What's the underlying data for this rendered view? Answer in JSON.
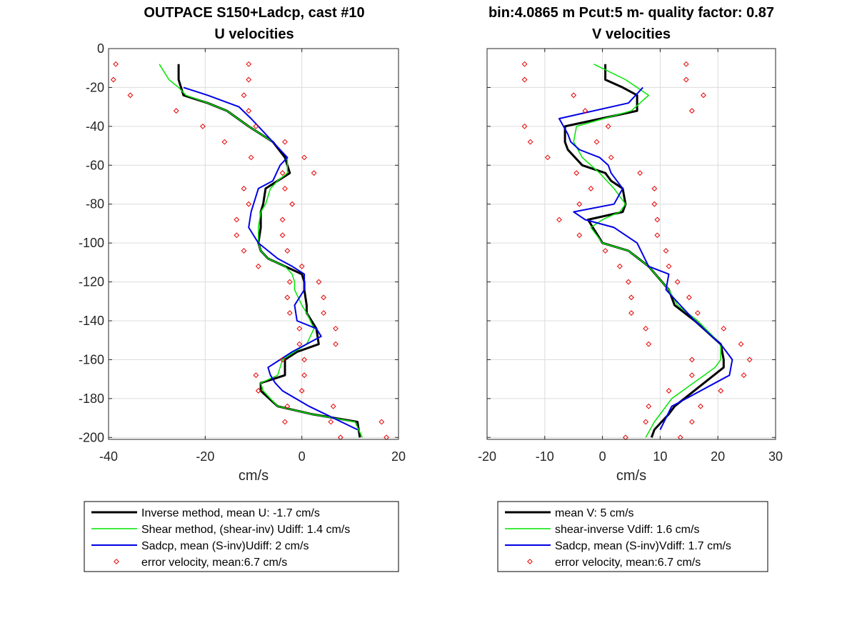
{
  "figure": {
    "left_title_line1": "OUTPACE S150+Ladcp, cast #10",
    "left_title_line2": "U velocities",
    "right_title_line1": "bin:4.0865 m  Pcut:5 m- quality factor:  0.87",
    "right_title_line2": "V velocities",
    "left_xlabel": "cm/s",
    "right_xlabel": "cm/s"
  },
  "colors": {
    "inverse": "#000000",
    "shear": "#00e600",
    "sadcp": "#0000e6",
    "error": "#e60000",
    "grid": "#dcdcdc",
    "axis": "#262626"
  },
  "legends": {
    "left": [
      {
        "label": "Inverse method, mean U:  -1.7 cm/s",
        "style": "inverse"
      },
      {
        "label": "Shear method, (shear-inv)  Udiff:  1.4 cm/s",
        "style": "shear"
      },
      {
        "label": "Sadcp, mean (S-inv)Udiff: 2 cm/s",
        "style": "sadcp"
      },
      {
        "label": "error velocity, mean:6.7 cm/s",
        "style": "error"
      }
    ],
    "right": [
      {
        "label": "mean V:  5 cm/s",
        "style": "inverse"
      },
      {
        "label": "shear-inverse Vdiff:  1.6 cm/s",
        "style": "shear"
      },
      {
        "label": "Sadcp, mean (S-inv)Vdiff: 1.7 cm/s",
        "style": "sadcp"
      },
      {
        "label": "error velocity, mean:6.7 cm/s",
        "style": "error"
      }
    ]
  },
  "chart_data": [
    {
      "type": "line",
      "title": "OUTPACE S150+Ladcp, cast #10 — U velocities",
      "xlabel": "cm/s",
      "ylabel": "",
      "xlim": [
        -40,
        20
      ],
      "ylim": [
        -201,
        0
      ],
      "xticks": [
        -40,
        -20,
        0,
        20
      ],
      "yticks": [
        0,
        -20,
        -40,
        -60,
        -80,
        -100,
        -120,
        -140,
        -160,
        -180,
        -200
      ],
      "grid": true,
      "legend": "below",
      "series": [
        {
          "name": "Inverse method, mean U:  -1.7 cm/s",
          "style": "inverse",
          "x": [
            -25.5,
            -25.5,
            -25,
            -24.5,
            -19.5,
            -15.5,
            -11,
            -6,
            -3.5,
            -2.5,
            -5,
            -7.5,
            -8,
            -8.5,
            -8.5,
            -9,
            -8.5,
            -7,
            -3.5,
            0,
            0.5,
            0.5,
            1,
            1,
            3,
            3.5,
            -1,
            -3.5,
            -3.5,
            -8.5,
            -8.5,
            -5,
            2,
            11.5,
            12
          ],
          "y": [
            -8,
            -16,
            -20,
            -24,
            -28,
            -32,
            -40,
            -48,
            -56,
            -64,
            -68,
            -72,
            -80,
            -84,
            -92,
            -100,
            -104,
            -108,
            -112,
            -116,
            -120,
            -124,
            -132,
            -136,
            -144,
            -152,
            -156,
            -160,
            -168,
            -172,
            -176,
            -184,
            -188,
            -192,
            -200
          ]
        },
        {
          "name": "Shear method, (shear-inv)  Udiff:  1.4 cm/s",
          "style": "shear",
          "x": [
            -29.5,
            -27.5,
            -25.5,
            -24,
            -19.5,
            -15.5,
            -11,
            -6,
            -3,
            -3,
            -5,
            -6.5,
            -7.5,
            -8.5,
            -9,
            -9,
            -8.5,
            -7,
            -3.5,
            -2,
            -1.5,
            -1.5,
            0,
            1,
            2.5,
            1,
            -1.5,
            -4,
            -5,
            -8.5,
            -8,
            -5,
            2,
            11,
            12.5
          ],
          "y": [
            -8,
            -16,
            -20,
            -24,
            -28,
            -32,
            -40,
            -48,
            -56,
            -64,
            -68,
            -72,
            -80,
            -84,
            -92,
            -100,
            -104,
            -108,
            -112,
            -116,
            -120,
            -124,
            -132,
            -136,
            -144,
            -152,
            -156,
            -160,
            -168,
            -172,
            -176,
            -184,
            -188,
            -192,
            -200
          ]
        },
        {
          "name": "Sadcp, mean (S-inv)Udiff: 2 cm/s",
          "style": "sadcp",
          "x": [
            -24.5,
            -19.5,
            -13,
            -10.5,
            -7.5,
            -4.5,
            -3,
            -4.5,
            -6,
            -9,
            -10.5,
            -11,
            -9,
            -7,
            -5,
            -2,
            0.5,
            0.5,
            -1.5,
            -1,
            3,
            4,
            -2,
            -7,
            -6.5,
            -5.5,
            -4,
            1.5,
            11.5
          ],
          "y": [
            -20,
            -24,
            -30,
            -36,
            -44,
            -52,
            -56,
            -60,
            -68,
            -72,
            -84,
            -92,
            -100,
            -104,
            -108,
            -112,
            -116,
            -124,
            -132,
            -140,
            -144,
            -148,
            -156,
            -164,
            -168,
            -172,
            -176,
            -184,
            -196
          ]
        },
        {
          "name": "error velocity, mean:6.7 cm/s",
          "style": "error",
          "marker": "diamond",
          "x": [
            -38.5,
            -11,
            -39,
            -11,
            -35.5,
            -12,
            -26,
            -11,
            -20.5,
            -9.5,
            -16,
            -3.5,
            -10.5,
            0.5,
            -4,
            2.5,
            -12,
            -3.5,
            -11,
            -2,
            -13.5,
            -4,
            -13.5,
            -4,
            -12,
            -3,
            -9,
            0,
            -2.5,
            3.5,
            -3,
            4.5,
            -2.5,
            4.5,
            -0.5,
            7,
            -0.5,
            7,
            -4,
            0.5,
            -9.5,
            0.5,
            -9,
            0,
            -3,
            6.5,
            -3.5,
            6,
            16.5,
            8,
            17.5
          ],
          "y": [
            -8,
            -8,
            -16,
            -16,
            -24,
            -24,
            -32,
            -32,
            -40,
            -40,
            -48,
            -48,
            -56,
            -56,
            -64,
            -64,
            -72,
            -72,
            -80,
            -80,
            -88,
            -88,
            -96,
            -96,
            -104,
            -104,
            -112,
            -112,
            -120,
            -120,
            -128,
            -128,
            -136,
            -136,
            -144,
            -144,
            -152,
            -152,
            -160,
            -160,
            -168,
            -168,
            -176,
            -176,
            -184,
            -184,
            -192,
            -192,
            -192,
            -200,
            -200
          ]
        }
      ]
    },
    {
      "type": "line",
      "title": "V velocities",
      "xlabel": "cm/s",
      "ylabel": "",
      "xlim": [
        -20,
        30
      ],
      "ylim": [
        -201,
        0
      ],
      "xticks": [
        -20,
        -10,
        0,
        10,
        20,
        30
      ],
      "yticks": [
        0,
        -20,
        -40,
        -60,
        -80,
        -100,
        -120,
        -140,
        -160,
        -180,
        -200
      ],
      "grid": true,
      "legend": "below",
      "series": [
        {
          "name": "mean V:  5 cm/s",
          "style": "inverse",
          "x": [
            0.5,
            0.5,
            3.5,
            6,
            6,
            -6.5,
            -6.5,
            -6,
            -3.5,
            0.5,
            1.5,
            3.5,
            4,
            3.5,
            -2.5,
            0,
            4.5,
            8,
            11.5,
            12.5,
            16,
            20.5,
            21,
            21,
            12.5,
            11.5,
            9,
            8.5
          ],
          "y": [
            -8,
            -16,
            -20,
            -24,
            -32,
            -40,
            -48,
            -52,
            -60,
            -64,
            -68,
            -72,
            -80,
            -84,
            -88,
            -100,
            -104,
            -112,
            -124,
            -132,
            -140,
            -152,
            -160,
            -164,
            -184,
            -188,
            -196,
            -200
          ]
        },
        {
          "name": "shear-inverse Vdiff:  1.6 cm/s",
          "style": "shear",
          "x": [
            -1.5,
            4,
            8,
            5,
            -4.5,
            -5,
            -3.5,
            -0.5,
            2,
            4,
            3,
            0,
            -2,
            0,
            4.5,
            8,
            11.5,
            13,
            16.5,
            20.5,
            20.5,
            19.5,
            12,
            9,
            7.5
          ],
          "y": [
            -8,
            -16,
            -24,
            -32,
            -40,
            -48,
            -56,
            -64,
            -72,
            -80,
            -84,
            -88,
            -92,
            -100,
            -104,
            -112,
            -124,
            -132,
            -140,
            -152,
            -160,
            -164,
            -180,
            -192,
            -200
          ]
        },
        {
          "name": "Sadcp, mean (S-inv)Vdiff: 1.7 cm/s",
          "style": "sadcp",
          "x": [
            7,
            4.5,
            -7.5,
            -6,
            -5.5,
            -4,
            -0.5,
            1,
            1.5,
            3.5,
            2,
            -5,
            -3,
            2,
            6,
            8,
            11.5,
            11,
            16,
            20.5,
            22.5,
            22,
            12,
            10
          ],
          "y": [
            -20,
            -28,
            -36,
            -44,
            -48,
            -52,
            -56,
            -60,
            -64,
            -72,
            -80,
            -84,
            -88,
            -92,
            -100,
            -112,
            -116,
            -124,
            -140,
            -152,
            -160,
            -168,
            -184,
            -196
          ]
        },
        {
          "name": "error velocity, mean:6.7 cm/s",
          "style": "error",
          "marker": "diamond",
          "x": [
            -13.5,
            14.5,
            -13.5,
            14.5,
            -5,
            17.5,
            -3,
            15.5,
            -13.5,
            1,
            -12.5,
            -1,
            -9.5,
            1.5,
            -4.5,
            6.5,
            -2,
            9,
            -4,
            9,
            -7.5,
            9.5,
            -4,
            9.5,
            0.5,
            11,
            3,
            11.5,
            4.5,
            13,
            5,
            15,
            5,
            16.5,
            7.5,
            21,
            8,
            24,
            15.5,
            25.5,
            15.5,
            24.5,
            11.5,
            20.5,
            8,
            17,
            7.5,
            15.5,
            4,
            13.5
          ],
          "y": [
            -8,
            -8,
            -16,
            -16,
            -24,
            -24,
            -32,
            -32,
            -40,
            -40,
            -48,
            -48,
            -56,
            -56,
            -64,
            -64,
            -72,
            -72,
            -80,
            -80,
            -88,
            -88,
            -96,
            -96,
            -104,
            -104,
            -112,
            -112,
            -120,
            -120,
            -128,
            -128,
            -136,
            -136,
            -144,
            -144,
            -152,
            -152,
            -160,
            -160,
            -168,
            -168,
            -176,
            -176,
            -184,
            -184,
            -192,
            -192,
            -200,
            -200
          ]
        }
      ]
    }
  ]
}
